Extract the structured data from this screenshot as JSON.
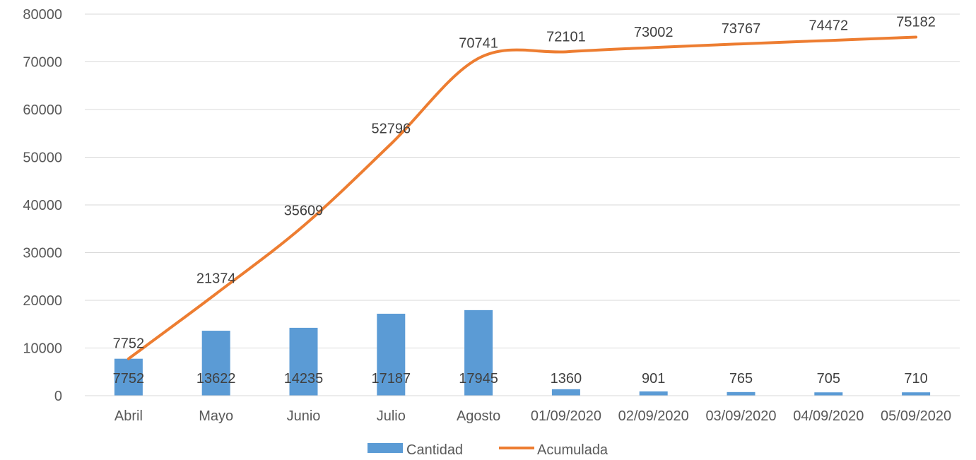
{
  "chart_data": {
    "type": "bar",
    "categories": [
      "Abril",
      "Mayo",
      "Junio",
      "Julio",
      "Agosto",
      "01/09/2020",
      "02/09/2020",
      "03/09/2020",
      "04/09/2020",
      "05/09/2020"
    ],
    "series": [
      {
        "name": "Cantidad",
        "type": "bar",
        "color": "#5B9BD5",
        "values": [
          7752,
          13622,
          14235,
          17187,
          17945,
          1360,
          901,
          765,
          705,
          710
        ],
        "labels": [
          "7752",
          "13622",
          "14235",
          "17187",
          "17945",
          "1360",
          "901",
          "765",
          "705",
          "710"
        ]
      },
      {
        "name": "Acumulada",
        "type": "line",
        "smooth": true,
        "color": "#ED7D31",
        "values": [
          7752,
          21374,
          35609,
          52796,
          70741,
          72101,
          73002,
          73767,
          74472,
          75182
        ],
        "labels": [
          "7752",
          "21374",
          "35609",
          "52796",
          "70741",
          "72101",
          "73002",
          "73767",
          "74472",
          "75182"
        ]
      }
    ],
    "ylim": [
      0,
      80000
    ],
    "yticks": [
      "0",
      "10000",
      "20000",
      "30000",
      "40000",
      "50000",
      "60000",
      "70000",
      "80000"
    ],
    "grid": true,
    "gridColor": "#D9D9D9",
    "legend": "bottom",
    "xlabel": "",
    "ylabel": ""
  }
}
